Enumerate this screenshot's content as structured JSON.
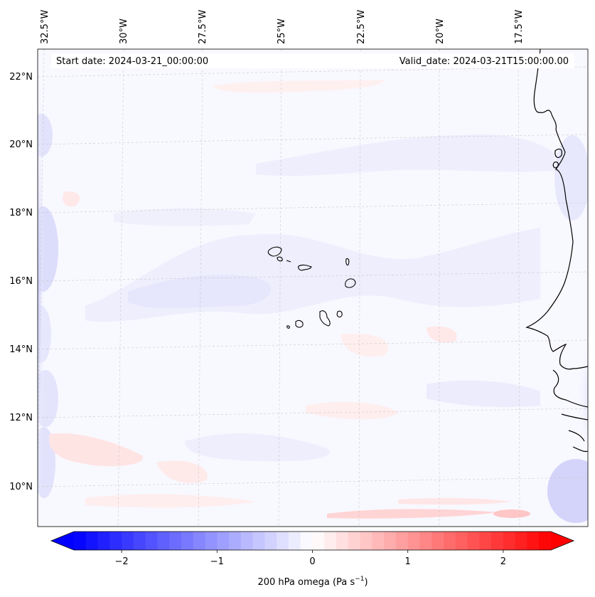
{
  "header": {
    "start_date": "Start date: 2024-03-21_00:00:00",
    "valid_date": "Valid_date: 2024-03-21T15:00:00.00"
  },
  "map": {
    "lon_labels": [
      "32.5°W",
      "30°W",
      "27.5°W",
      "25°W",
      "22.5°W",
      "20°W",
      "17.5°W"
    ],
    "lat_labels": [
      "22°N",
      "20°N",
      "18°N",
      "16°N",
      "14°N",
      "12°N",
      "10°N"
    ],
    "field_colors": {
      "background": "#f8f8ff",
      "weak_negative": "#ececfd",
      "moderate_negative": "#d6d6fb",
      "weak_positive": "#ffeeee",
      "moderate_positive": "#ffd8d8"
    }
  },
  "colorbar": {
    "tick_labels": [
      "−2",
      "−1",
      "0",
      "1",
      "2"
    ],
    "tick_values": [
      -2,
      -1,
      0,
      1,
      2
    ],
    "min": -2.5,
    "max": 2.5,
    "label_prefix": "200 hPa omega (Pa s",
    "label_exponent": "−1",
    "label_suffix": ")",
    "colors": {
      "low": "#0000ff",
      "mid": "#ffffff",
      "high": "#ff0000"
    }
  }
}
